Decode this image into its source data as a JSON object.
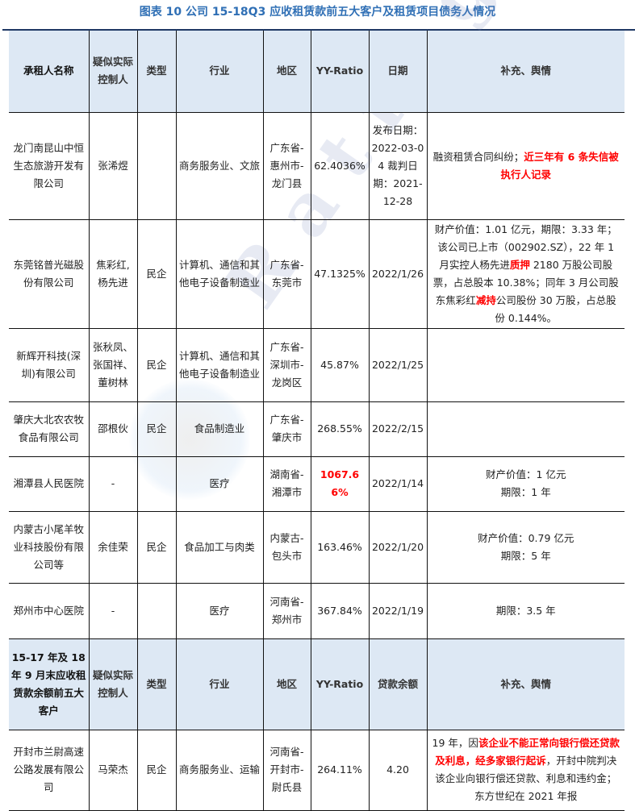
{
  "title": "图表 10 公司 15-18Q3 应收租赁款前五大客户及租赁项目债务人情况",
  "watermark": "Ratingdog",
  "colors": {
    "header_bg": "#dde8f4",
    "title": "#2f6fb5",
    "highlight": "#ff0000"
  },
  "header1": [
    "承租人名称",
    "疑似实际控制人",
    "类型",
    "行业",
    "地区",
    "YY-Ratio",
    "日期",
    "补充、舆情"
  ],
  "rows1": [
    {
      "name": "龙门南昆山中恒生态旅游开发有限公司",
      "controller": "张浠煜",
      "type": "",
      "industry": "商务服务业、文旅",
      "region": "广东省-惠州市-龙门县",
      "ratio": "62.4036%",
      "ratio_red": false,
      "date": "发布日期：2022-03-04 裁判日期：2021-12-28",
      "remark": [
        {
          "text": "融资租赁合同纠纷；",
          "red": false
        },
        {
          "text": "近三年有 6 条失信被执行人记录",
          "red": true
        }
      ]
    },
    {
      "name": "东莞铭普光磁股份有限公司",
      "controller": "焦彩红,杨先进",
      "type": "民企",
      "industry": "计算机、通信和其他电子设备制造业",
      "region": "广东省-东莞市",
      "ratio": "47.1325%",
      "ratio_red": false,
      "date": "2022/1/26",
      "remark": [
        {
          "text": "财产价值：1.01 亿元，期限：3.33 年；该公司已上市（002902.SZ），22 年 1 月实控人杨先进",
          "red": false
        },
        {
          "text": "质押",
          "red": true
        },
        {
          "text": " 2180 万股公司股票，占总股本 10.38%；同年 3 月公司股东焦彩红",
          "red": false
        },
        {
          "text": "减持",
          "red": true
        },
        {
          "text": "公司股份 30 万股，占总股份 0.144%。",
          "red": false
        }
      ]
    },
    {
      "name": "新辉开科技(深圳)有限公司",
      "controller": "张秋凤、张国祥、董树林",
      "type": "民企",
      "industry": "计算机、通信和其他电子设备制造业",
      "region": "广东省-深圳市-龙岗区",
      "ratio": "45.87%",
      "ratio_red": false,
      "date": "2022/1/25",
      "remark": []
    },
    {
      "name": "肇庆大北农农牧食品有限公司",
      "controller": "邵根伙",
      "type": "民企",
      "industry": "食品制造业",
      "region": "广东省-肇庆市",
      "ratio": "268.55%",
      "ratio_red": false,
      "date": "2022/2/15",
      "remark": []
    },
    {
      "name": "湘潭县人民医院",
      "controller": "-",
      "type": "",
      "industry": "医疗",
      "region": "湖南省-湘潭市",
      "ratio": "1067.66%",
      "ratio_red": true,
      "date": "2022/1/14",
      "remark": [
        {
          "text": "财产价值：1 亿元",
          "red": false,
          "br": true
        },
        {
          "text": "期限：1 年",
          "red": false
        }
      ]
    },
    {
      "name": "内蒙古小尾羊牧业科技股份有限公司等",
      "controller": "余佳荣",
      "type": "民企",
      "industry": "食品加工与肉类",
      "region": "内蒙古-包头市",
      "ratio": "163.46%",
      "ratio_red": false,
      "date": "2022/1/20",
      "remark": [
        {
          "text": "财产价值：0.79 亿元",
          "red": false,
          "br": true
        },
        {
          "text": "期限：5 年",
          "red": false
        }
      ]
    },
    {
      "name": "郑州市中心医院",
      "controller": "-",
      "type": "",
      "industry": "医疗",
      "region": "河南省-郑州市",
      "ratio": "367.84%",
      "ratio_red": false,
      "date": "2022/1/19",
      "remark": [
        {
          "text": "期限：3.5 年",
          "red": false
        }
      ]
    }
  ],
  "header2": [
    "15-17 年及 18 年 9 月末应收租赁款余额前五大客户",
    "疑似实际控制人",
    "类型",
    "行业",
    "地区",
    "YY-Ratio",
    "贷款余额",
    "补充、舆情"
  ],
  "rows2": [
    {
      "name": "开封市兰尉高速公路发展有限公司",
      "controller": "马荣杰",
      "type": "民企",
      "industry": "商务服务业、运输",
      "region": "河南省-开封市-尉氏县",
      "ratio": "264.11%",
      "ratio_red": false,
      "date": "4.20",
      "remark": [
        {
          "text": "19 年，因",
          "red": false
        },
        {
          "text": "该企业不能正常向银行偿还贷款及利息，经多家银行起诉",
          "red": true
        },
        {
          "text": "，开封中院判决该企业向银行偿还贷款、利息和违约金；东方世纪在 2021 年报",
          "red": false
        }
      ]
    }
  ]
}
